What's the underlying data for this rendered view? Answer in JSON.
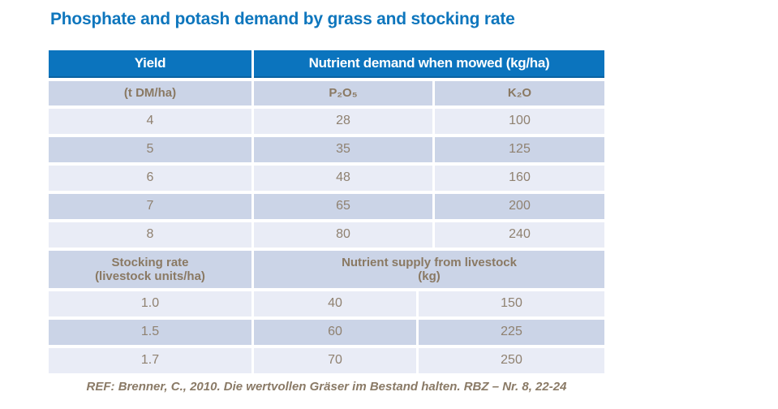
{
  "title": "Phosphate and potash demand by grass and stocking rate",
  "colors": {
    "title_blue": "#0e76bd",
    "header_blue": "#0b74be",
    "row_dark": "#cbd4e7",
    "row_light": "#e9ecf6",
    "text_brown": "#8f8170",
    "header_text_brown": "#8a7963"
  },
  "table": {
    "section1": {
      "col1_header": "Yield",
      "col23_header": "Nutrient demand when mowed (kg/ha)",
      "subheader": [
        "(t DM/ha)",
        "P₂O₅",
        "K₂O"
      ],
      "rows": [
        [
          "4",
          "28",
          "100"
        ],
        [
          "5",
          "35",
          "125"
        ],
        [
          "6",
          "48",
          "160"
        ],
        [
          "7",
          "65",
          "200"
        ],
        [
          "8",
          "80",
          "240"
        ]
      ]
    },
    "section2": {
      "col1_header_line1": "Stocking rate",
      "col1_header_line2": "(livestock units/ha)",
      "col23_header_line1": "Nutrient supply from livestock",
      "col23_header_line2": "(kg)",
      "rows": [
        [
          "1.0",
          "40",
          "150"
        ],
        [
          "1.5",
          "60",
          "225"
        ],
        [
          "1.7",
          "70",
          "250"
        ]
      ]
    }
  },
  "footer": "REF: Brenner, C., 2010. Die wertvollen Gräser im Bestand halten. RBZ – Nr. 8, 22-24"
}
